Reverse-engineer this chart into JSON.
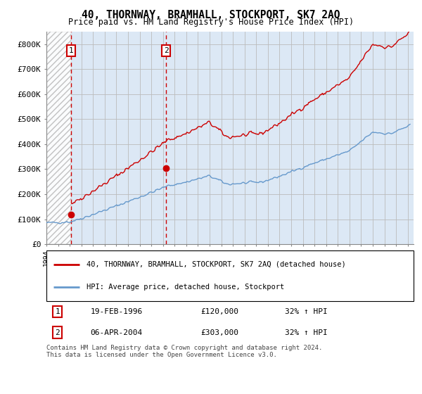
{
  "title": "40, THORNWAY, BRAMHALL, STOCKPORT, SK7 2AQ",
  "subtitle": "Price paid vs. HM Land Registry's House Price Index (HPI)",
  "ylim": [
    0,
    850000
  ],
  "xlim_start": 1994.0,
  "xlim_end": 2025.5,
  "sale1_date": 1996.13,
  "sale1_price": 120000,
  "sale1_label": "1",
  "sale1_year_str": "19-FEB-1996",
  "sale1_price_str": "£120,000",
  "sale1_hpi_str": "32% ↑ HPI",
  "sale2_date": 2004.27,
  "sale2_price": 303000,
  "sale2_label": "2",
  "sale2_year_str": "06-APR-2004",
  "sale2_price_str": "£303,000",
  "sale2_hpi_str": "32% ↑ HPI",
  "hpi_color": "#6699cc",
  "sale_color": "#cc0000",
  "vline_color": "#cc0000",
  "plot_bg_color": "#dce8f5",
  "hatch_color": "#bbbbbb",
  "grid_color": "#bbbbbb",
  "legend_line1": "40, THORNWAY, BRAMHALL, STOCKPORT, SK7 2AQ (detached house)",
  "legend_line2": "HPI: Average price, detached house, Stockport",
  "footer": "Contains HM Land Registry data © Crown copyright and database right 2024.\nThis data is licensed under the Open Government Licence v3.0.",
  "hpi_scale": 1.32,
  "hpi_base_1996": 90000,
  "hpi_base_2004": 229000
}
